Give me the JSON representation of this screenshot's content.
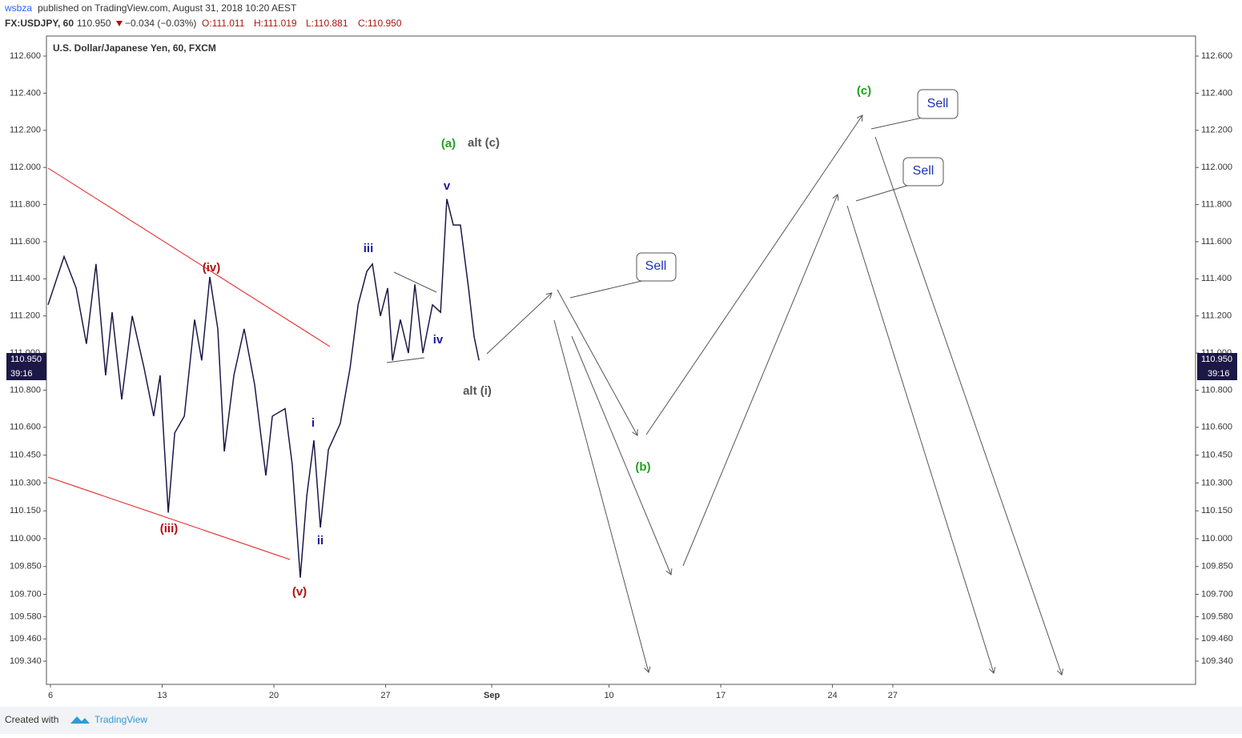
{
  "header": {
    "author": "wsbza",
    "published": "published on TradingView.com, August 31, 2018 10:20 AEST",
    "symbol": "FX:USDJPY, 60",
    "last": "110.950",
    "change": "−0.034 (−0.03%)",
    "open": "O:111.011",
    "high": "H:111.019",
    "low": "L:110.881",
    "close": "C:110.950",
    "countdown": "39:16"
  },
  "footer": {
    "created": "Created with",
    "brand": "TradingView"
  },
  "chart_data": {
    "type": "line",
    "title": "U.S. Dollar/Japanese Yen, 60, FXCM",
    "xlim": [
      -0.18,
      51.25
    ],
    "ylim": [
      109.215,
      112.708
    ],
    "xticks": [
      {
        "value": 0,
        "label": "6"
      },
      {
        "value": 5,
        "label": "13"
      },
      {
        "value": 10,
        "label": "20"
      },
      {
        "value": 15,
        "label": "27"
      },
      {
        "value": 19.75,
        "label": "Sep"
      },
      {
        "value": 25,
        "label": "10"
      },
      {
        "value": 30,
        "label": "17"
      },
      {
        "value": 35,
        "label": "24"
      },
      {
        "value": 37.7,
        "label": "27"
      }
    ],
    "yticks": [
      {
        "value": 112.6,
        "label": "112.600"
      },
      {
        "value": 112.4,
        "label": "112.400"
      },
      {
        "value": 112.2,
        "label": "112.200"
      },
      {
        "value": 112.0,
        "label": "112.000"
      },
      {
        "value": 111.8,
        "label": "111.800"
      },
      {
        "value": 111.6,
        "label": "111.600"
      },
      {
        "value": 111.4,
        "label": "111.400"
      },
      {
        "value": 111.2,
        "label": "111.200"
      },
      {
        "value": 111.0,
        "label": "111.000"
      },
      {
        "value": 110.8,
        "label": "110.800"
      },
      {
        "value": 110.6,
        "label": "110.600"
      },
      {
        "value": 110.45,
        "label": "110.450"
      },
      {
        "value": 110.3,
        "label": "110.300"
      },
      {
        "value": 110.15,
        "label": "110.150"
      },
      {
        "value": 110.0,
        "label": "110.000"
      },
      {
        "value": 109.85,
        "label": "109.850"
      },
      {
        "value": 109.7,
        "label": "109.700"
      },
      {
        "value": 109.58,
        "label": "109.580"
      },
      {
        "value": 109.46,
        "label": "109.460"
      },
      {
        "value": 109.34,
        "label": "109.340"
      }
    ],
    "series": [
      {
        "name": "USDJPY",
        "color": "#1b1846",
        "x": [
          -0.11,
          0.61,
          1.15,
          1.61,
          2.04,
          2.47,
          2.76,
          3.19,
          3.66,
          4.19,
          4.62,
          4.91,
          5.27,
          5.56,
          5.99,
          6.45,
          6.77,
          7.13,
          7.49,
          7.78,
          8.21,
          8.67,
          9.14,
          9.64,
          9.93,
          10.5,
          10.82,
          11.18,
          11.47,
          11.79,
          12.08,
          12.44,
          12.97,
          13.41,
          13.77,
          14.16,
          14.41,
          14.77,
          15.09,
          15.31,
          15.66,
          16.02,
          16.31,
          16.67,
          17.1,
          17.46,
          17.74,
          18.03,
          18.35,
          18.71,
          18.96,
          19.18
        ],
        "values": [
          111.26,
          111.52,
          111.35,
          111.05,
          111.48,
          110.88,
          111.22,
          110.75,
          111.2,
          110.92,
          110.66,
          110.88,
          110.14,
          110.57,
          110.66,
          111.18,
          110.96,
          111.41,
          111.13,
          110.47,
          110.88,
          111.13,
          110.83,
          110.34,
          110.66,
          110.7,
          110.4,
          109.79,
          110.23,
          110.53,
          110.06,
          110.48,
          110.62,
          110.92,
          111.26,
          111.44,
          111.48,
          111.2,
          111.35,
          110.96,
          111.18,
          111.0,
          111.37,
          111.0,
          111.26,
          111.22,
          111.83,
          111.69,
          111.69,
          111.35,
          111.09,
          110.96
        ]
      }
    ],
    "annotations": [
      {
        "text": "(iv)"
      },
      {
        "text": "(iii)"
      },
      {
        "text": "(v)"
      },
      {
        "text": "i"
      },
      {
        "text": "ii"
      },
      {
        "text": "iii"
      },
      {
        "text": "iv"
      },
      {
        "text": "v"
      },
      {
        "text": "(a)"
      },
      {
        "text": "alt (c)"
      },
      {
        "text": "alt (i)"
      },
      {
        "text": "(b)"
      },
      {
        "text": "(c)"
      },
      {
        "text": "Sell"
      },
      {
        "text": "Sell"
      },
      {
        "text": "Sell"
      }
    ]
  }
}
